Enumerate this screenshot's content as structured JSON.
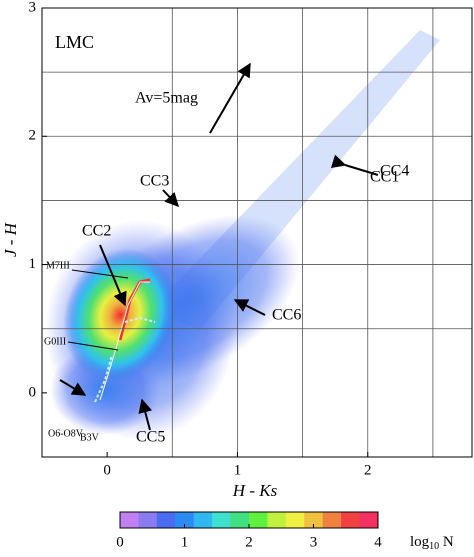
{
  "chart_data": {
    "type": "density",
    "field_label": "LMC",
    "xlabel": "H - Ks",
    "ylabel": "J - H",
    "xlim": [
      -0.5,
      2.8
    ],
    "ylim": [
      -0.5,
      3
    ],
    "xticks": [
      0,
      1,
      2
    ],
    "yticks": [
      0,
      1,
      2,
      3
    ],
    "xgrid": [
      0.5,
      1,
      1.5,
      2,
      2.5
    ],
    "ygrid": [
      0.5,
      1,
      1.5,
      2,
      2.5
    ],
    "grid": true,
    "annotations": [
      "Av=5mag",
      "CC1",
      "CC2",
      "CC3",
      "CC4",
      "CC5",
      "CC6",
      "M7III",
      "G0III",
      "O6-O8V",
      "B3V"
    ],
    "colorbar": {
      "lim": [
        0,
        4
      ],
      "ticks": [
        0,
        1,
        2,
        3,
        4
      ],
      "label": {
        "text": "log",
        "sub": "10",
        "tail": " N"
      },
      "colors": [
        "#c080f0",
        "#8a7cf0",
        "#4a6cf0",
        "#2a8cf0",
        "#30b8f0",
        "#40e0d0",
        "#40e080",
        "#60f040",
        "#c0f040",
        "#f0f040",
        "#f0c040",
        "#f08040",
        "#f04040",
        "#f03060"
      ]
    }
  }
}
